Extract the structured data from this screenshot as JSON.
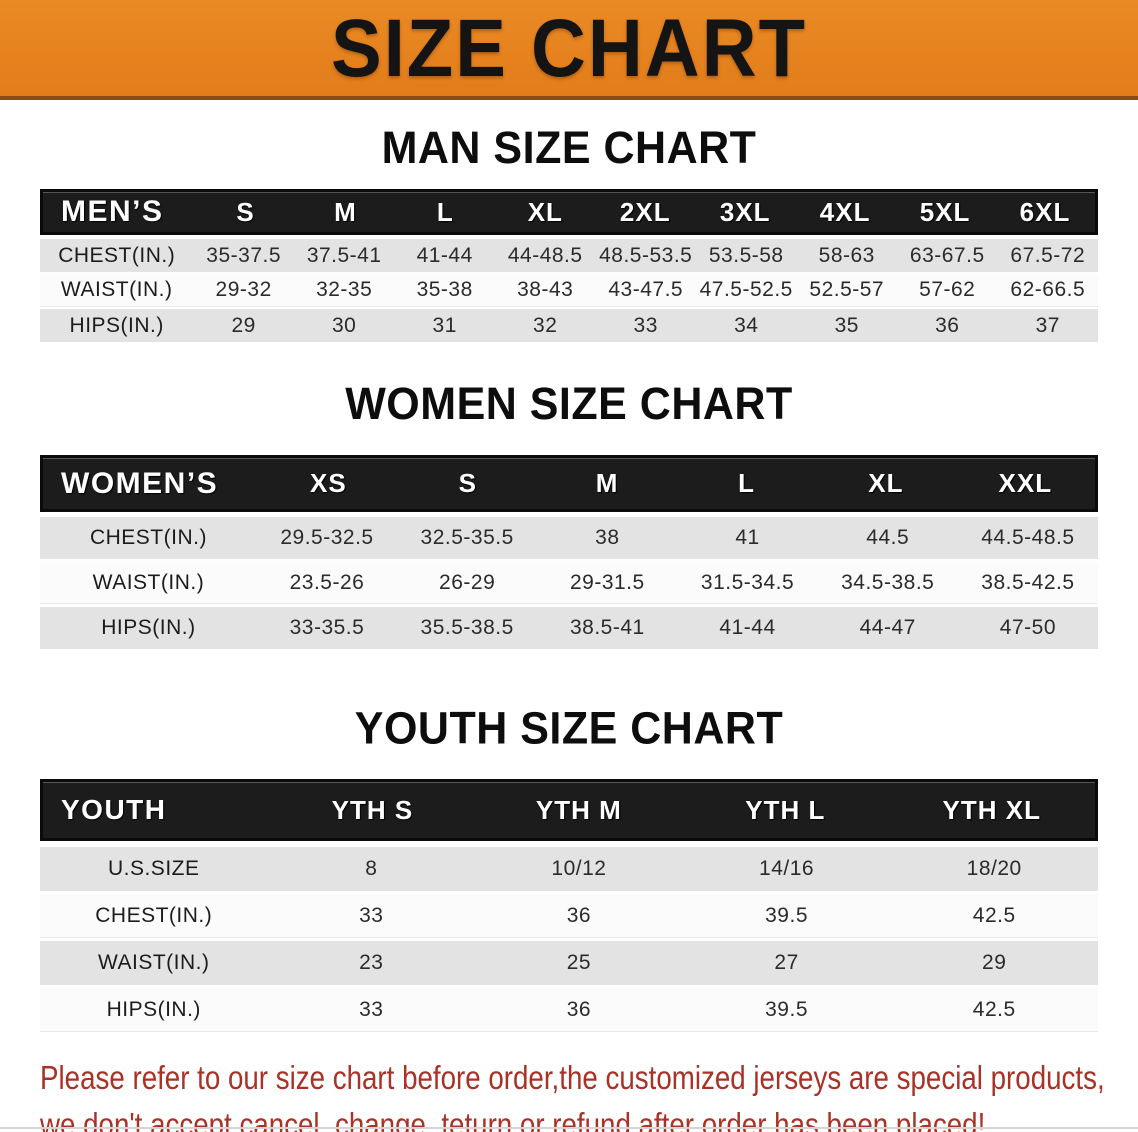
{
  "banner": {
    "title": "SIZE CHART"
  },
  "colors": {
    "banner_bg": "#e6831f",
    "banner_border": "#8a4c12",
    "table_header_bg": "#1c1c1c",
    "row_gray": "#e3e3e4",
    "row_white": "#fbfbfc",
    "disclaimer_red": "#a93226"
  },
  "chart_data": [
    {
      "type": "table",
      "title": "MAN SIZE CHART",
      "header_label": "MEN’S",
      "columns": [
        "S",
        "M",
        "L",
        "XL",
        "2XL",
        "3XL",
        "4XL",
        "5XL",
        "6XL"
      ],
      "rows": [
        {
          "label": "CHEST(IN.)",
          "values": [
            "35-37.5",
            "37.5-41",
            "41-44",
            "44-48.5",
            "48.5-53.5",
            "53.5-58",
            "58-63",
            "63-67.5",
            "67.5-72"
          ]
        },
        {
          "label": "WAIST(IN.)",
          "values": [
            "29-32",
            "32-35",
            "35-38",
            "38-43",
            "43-47.5",
            "47.5-52.5",
            "52.5-57",
            "57-62",
            "62-66.5"
          ]
        },
        {
          "label": "HIPS(IN.)",
          "values": [
            "29",
            "30",
            "31",
            "32",
            "33",
            "34",
            "35",
            "36",
            "37"
          ]
        }
      ]
    },
    {
      "type": "table",
      "title": "WOMEN SIZE CHART",
      "header_label": "WOMEN’S",
      "columns": [
        "XS",
        "S",
        "M",
        "L",
        "XL",
        "XXL"
      ],
      "rows": [
        {
          "label": "CHEST(IN.)",
          "values": [
            "29.5-32.5",
            "32.5-35.5",
            "38",
            "41",
            "44.5",
            "44.5-48.5"
          ]
        },
        {
          "label": "WAIST(IN.)",
          "values": [
            "23.5-26",
            "26-29",
            "29-31.5",
            "31.5-34.5",
            "34.5-38.5",
            "38.5-42.5"
          ]
        },
        {
          "label": "HIPS(IN.)",
          "values": [
            "33-35.5",
            "35.5-38.5",
            "38.5-41",
            "41-44",
            "44-47",
            "47-50"
          ]
        }
      ]
    },
    {
      "type": "table",
      "title": "YOUTH SIZE CHART",
      "header_label": "YOUTH",
      "columns": [
        "YTH S",
        "YTH M",
        "YTH L",
        "YTH XL"
      ],
      "rows": [
        {
          "label": "U.S.SIZE",
          "values": [
            "8",
            "10/12",
            "14/16",
            "18/20"
          ]
        },
        {
          "label": "CHEST(IN.)",
          "values": [
            "33",
            "36",
            "39.5",
            "42.5"
          ]
        },
        {
          "label": "WAIST(IN.)",
          "values": [
            "23",
            "25",
            "27",
            "29"
          ]
        },
        {
          "label": "HIPS(IN.)",
          "values": [
            "33",
            "36",
            "39.5",
            "42.5"
          ]
        }
      ]
    }
  ],
  "disclaimer": {
    "line1": "Please refer to our size chart before order,the customized jerseys are special products,",
    "line2": "we don't accept cancel, change, teturn or refund after order has been placed!"
  }
}
